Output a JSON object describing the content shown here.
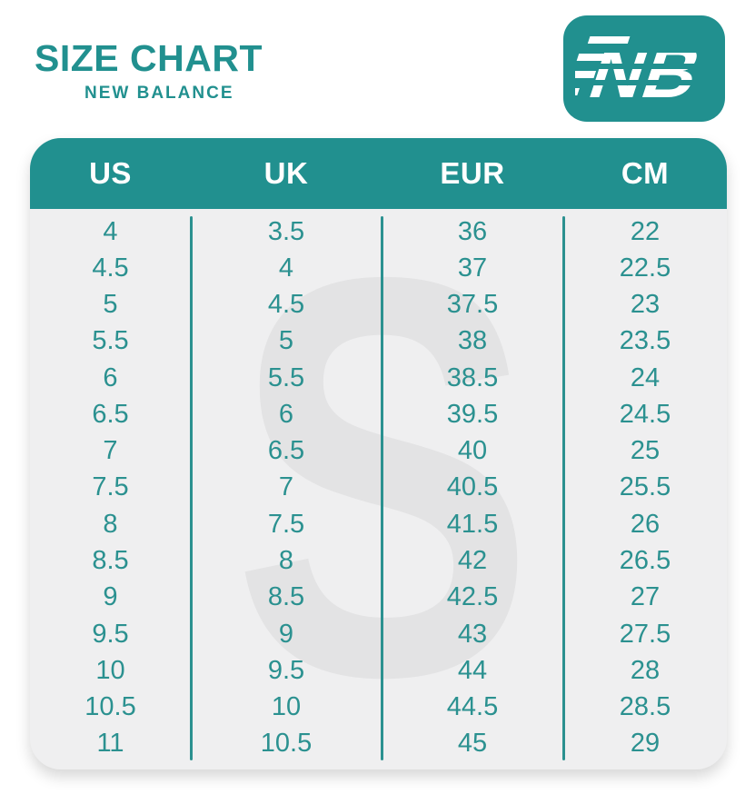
{
  "header": {
    "title": "SIZE CHART",
    "subtitle": "NEW BALANCE"
  },
  "logo": {
    "brand": "New Balance",
    "monogram": "NB"
  },
  "watermark": {
    "letter": "S"
  },
  "colors": {
    "teal": "#21908F",
    "table_bg": "#EFEFF0",
    "watermark_gray": "#E3E3E4",
    "number_teal": "#2B9190",
    "header_text": "#FFFFFF",
    "page_bg": "#FFFFFF"
  },
  "chart_data": {
    "type": "table",
    "title": "SIZE CHART",
    "subtitle": "NEW BALANCE",
    "columns": [
      "US",
      "UK",
      "EUR",
      "CM"
    ],
    "rows": [
      [
        "4",
        "3.5",
        "36",
        "22"
      ],
      [
        "4.5",
        "4",
        "37",
        "22.5"
      ],
      [
        "5",
        "4.5",
        "37.5",
        "23"
      ],
      [
        "5.5",
        "5",
        "38",
        "23.5"
      ],
      [
        "6",
        "5.5",
        "38.5",
        "24"
      ],
      [
        "6.5",
        "6",
        "39.5",
        "24.5"
      ],
      [
        "7",
        "6.5",
        "40",
        "25"
      ],
      [
        "7.5",
        "7",
        "40.5",
        "25.5"
      ],
      [
        "8",
        "7.5",
        "41.5",
        "26"
      ],
      [
        "8.5",
        "8",
        "42",
        "26.5"
      ],
      [
        "9",
        "8.5",
        "42.5",
        "27"
      ],
      [
        "9.5",
        "9",
        "43",
        "27.5"
      ],
      [
        "10",
        "9.5",
        "44",
        "28"
      ],
      [
        "10.5",
        "10",
        "44.5",
        "28.5"
      ],
      [
        "11",
        "10.5",
        "45",
        "29"
      ]
    ]
  }
}
